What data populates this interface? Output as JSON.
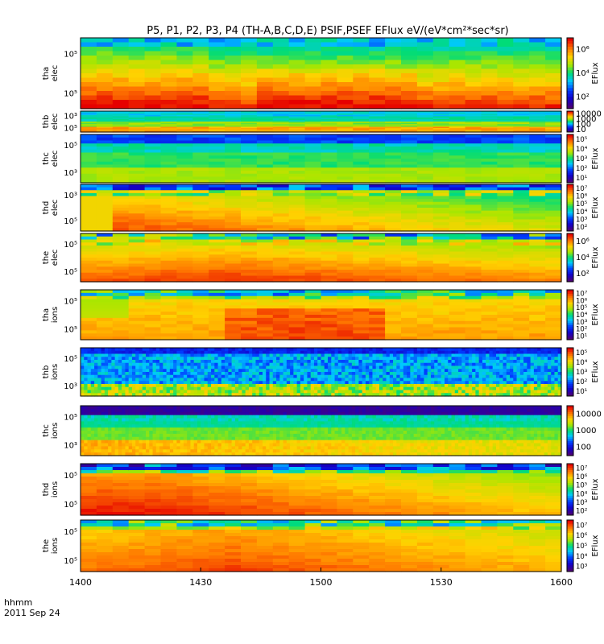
{
  "title": "P5, P1, P2, P3, P4 (TH-A,B,C,D,E) PSIF,PSEF EFlux eV/(eV*cm²*sec*sr)",
  "time_axis": {
    "label": "hhmm",
    "date": "2011 Sep 24",
    "ticks": [
      "1400",
      "1430",
      "1500",
      "1530",
      "1600"
    ],
    "range": [
      "14:00",
      "16:00"
    ]
  },
  "chart_data": [
    {
      "type": "heatmap",
      "probe": "tha",
      "species": "elec",
      "ylabel": "tha elec",
      "yticks": [
        "10⁵",
        "10⁵"
      ],
      "colorbar": {
        "label": "EFlux",
        "ticks": [
          "10⁶",
          "10⁴",
          "10²"
        ]
      },
      "pattern": "electron-warm",
      "blue_top": true
    },
    {
      "type": "heatmap",
      "probe": "thb",
      "species": "elec",
      "ylabel": "thb elec",
      "yticks": [
        "10³",
        "10⁵"
      ],
      "colorbar": {
        "label": "",
        "ticks": [
          "10000",
          "1000",
          "100",
          "10"
        ]
      },
      "pattern": "electron-cool"
    },
    {
      "type": "heatmap",
      "probe": "thc",
      "species": "elec",
      "ylabel": "thc elec",
      "yticks": [
        "10⁵",
        "10³"
      ],
      "colorbar": {
        "label": "EFlux",
        "ticks": [
          "10⁵",
          "10⁴",
          "10³",
          "10²",
          "10¹"
        ]
      },
      "pattern": "electron-mid"
    },
    {
      "type": "heatmap",
      "probe": "thd",
      "species": "elec",
      "ylabel": "thd elec",
      "yticks": [
        "10³",
        "10⁵"
      ],
      "colorbar": {
        "label": "EFlux",
        "ticks": [
          "10⁷",
          "10⁶",
          "10⁵",
          "10⁴",
          "10³",
          "10²"
        ]
      },
      "pattern": "electron-warm2"
    },
    {
      "type": "heatmap",
      "probe": "the",
      "species": "elec",
      "ylabel": "the elec",
      "yticks": [
        "10⁵",
        "10⁵"
      ],
      "colorbar": {
        "label": "EFlux",
        "ticks": [
          "10⁶",
          "10⁴",
          "10²"
        ]
      },
      "pattern": "electron-warm3"
    },
    {
      "type": "heatmap",
      "probe": "tha",
      "species": "ions",
      "ylabel": "tha ions",
      "yticks": [
        "10⁵",
        "10⁵"
      ],
      "colorbar": {
        "label": "EFlux",
        "ticks": [
          "10⁷",
          "10⁶",
          "10⁵",
          "10⁴",
          "10³",
          "10²",
          "10¹"
        ]
      },
      "pattern": "ion-warm"
    },
    {
      "type": "heatmap",
      "probe": "thb",
      "species": "ions",
      "ylabel": "thb ions",
      "yticks": [
        "10⁵",
        "10³"
      ],
      "colorbar": {
        "label": "EFlux",
        "ticks": [
          "10⁵",
          "10⁴",
          "10³",
          "10²",
          "10¹"
        ]
      },
      "pattern": "ion-striped"
    },
    {
      "type": "heatmap",
      "probe": "thc",
      "species": "ions",
      "ylabel": "thc ions",
      "yticks": [
        "10⁵",
        "10³"
      ],
      "colorbar": {
        "label": "",
        "ticks": [
          "10000",
          "1000",
          "100"
        ]
      },
      "pattern": "ion-cool"
    },
    {
      "type": "heatmap",
      "probe": "thd",
      "species": "ions",
      "ylabel": "thd ions",
      "yticks": [
        "10⁵",
        "10⁵"
      ],
      "colorbar": {
        "label": "EFlux",
        "ticks": [
          "10⁷",
          "10⁶",
          "10⁵",
          "10⁴",
          "10³",
          "10²"
        ]
      },
      "pattern": "ion-warm2"
    },
    {
      "type": "heatmap",
      "probe": "the",
      "species": "ions",
      "ylabel": "the ions",
      "yticks": [
        "10⁵",
        "10⁵"
      ],
      "colorbar": {
        "label": "EFlux",
        "ticks": [
          "10⁷",
          "10⁶",
          "10⁵",
          "10⁴",
          "10³"
        ]
      },
      "pattern": "ion-warm3"
    }
  ]
}
